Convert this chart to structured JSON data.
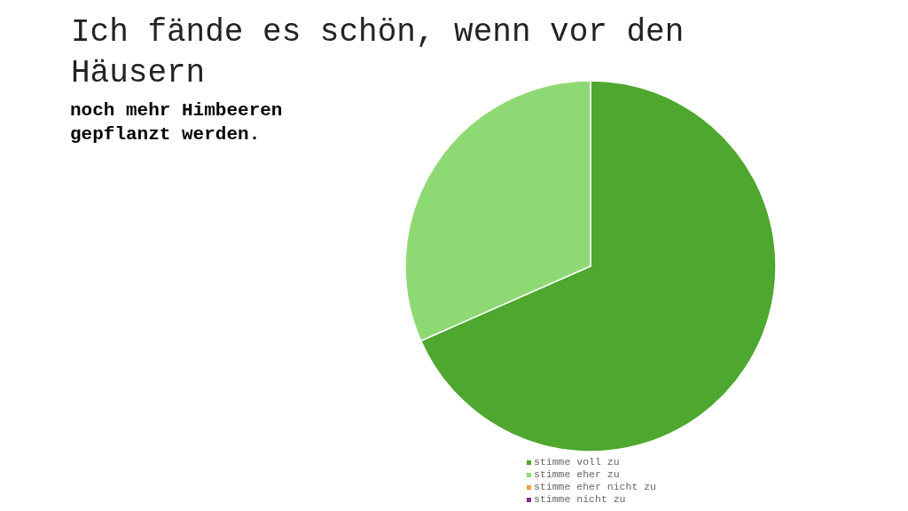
{
  "chart_data": {
    "type": "pie",
    "title": "Ich fände es schön, wenn vor den Häusern",
    "subtitle": "noch mehr Himbeeren gepflanzt werden.",
    "categories": [
      "stimme voll zu",
      "stimme eher zu",
      "stimme eher nicht zu",
      "stimme nicht zu"
    ],
    "values": [
      68.4,
      31.6,
      0,
      0
    ],
    "colors": [
      "#4ea72e",
      "#8fd974",
      "#f0a040",
      "#8a2d8e"
    ],
    "legend": "bottom"
  }
}
